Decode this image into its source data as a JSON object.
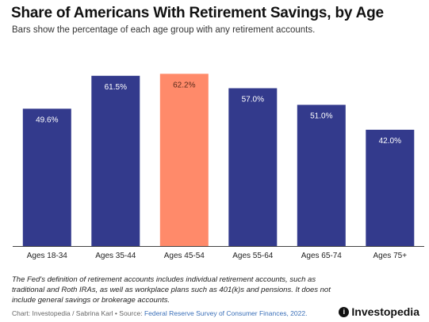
{
  "title": "Share of Americans With Retirement Savings, by Age",
  "subtitle": "Bars show the percentage of each age group with any retirement accounts.",
  "footnote": "The Fed's definition of retirement accounts includes individual retirement accounts, such as traditional and Roth IRAs, as well as workplace plans such as 401(k)s and pensions. It does not include general savings or brokerage accounts.",
  "credit": {
    "prefix": "Chart: Investopedia / Sabrina Karl • Source: ",
    "source_link": "Federal Reserve Survey of Consumer Finances, 2022."
  },
  "logo": {
    "text": "Investopedia",
    "mark_icon": "investopedia-logo-icon"
  },
  "colors": {
    "default_bar": "#333a8c",
    "highlight_bar": "#ff8a6a",
    "axis": "#444444"
  },
  "chart_data": {
    "type": "bar",
    "categories": [
      "Ages 18-34",
      "Ages 35-44",
      "Ages 45-54",
      "Ages 55-64",
      "Ages 65-74",
      "Ages 75+"
    ],
    "values": [
      49.6,
      61.5,
      62.2,
      57.0,
      51.0,
      42.0
    ],
    "data_labels": [
      "49.6%",
      "61.5%",
      "62.2%",
      "57.0%",
      "51.0%",
      "42.0%"
    ],
    "highlight_index": 2,
    "ylim": [
      0,
      70
    ],
    "grid": false,
    "xlabel": "",
    "ylabel": ""
  }
}
